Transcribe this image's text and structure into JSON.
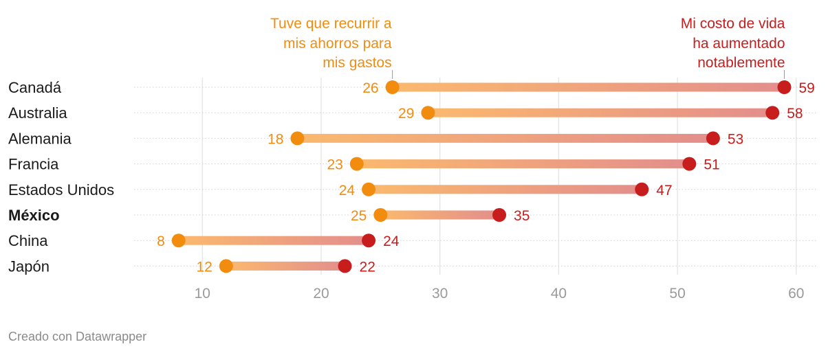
{
  "chart_data": {
    "type": "dumbbell",
    "categories": [
      "Canadá",
      "Australia",
      "Alemania",
      "Francia",
      "Estados Unidos",
      "México",
      "China",
      "Japón"
    ],
    "highlight": "México",
    "series": [
      {
        "name": "Tuve que recurrir a mis ahorros para mis gastos",
        "values": [
          26,
          29,
          18,
          23,
          24,
          25,
          8,
          12
        ],
        "color": "#f28c0f"
      },
      {
        "name": "Mi costo de vida ha aumentado notablemente",
        "values": [
          59,
          58,
          53,
          51,
          47,
          35,
          24,
          22
        ],
        "color": "#c71e1d"
      }
    ],
    "annotations": {
      "left_lines": [
        "Tuve que recurrir a",
        "mis ahorros para",
        "mis gastos"
      ],
      "right_lines": [
        "Mi costo de vida",
        "ha aumentado",
        "notablemente"
      ]
    },
    "xticks": [
      10,
      20,
      30,
      40,
      50,
      60
    ],
    "xlim": [
      4.25,
      61.75
    ],
    "grid": true,
    "bar_colors": {
      "start": "#fbb96e",
      "end": "#e38e8c"
    }
  },
  "footer": {
    "credit": "Creado con Datawrapper"
  }
}
